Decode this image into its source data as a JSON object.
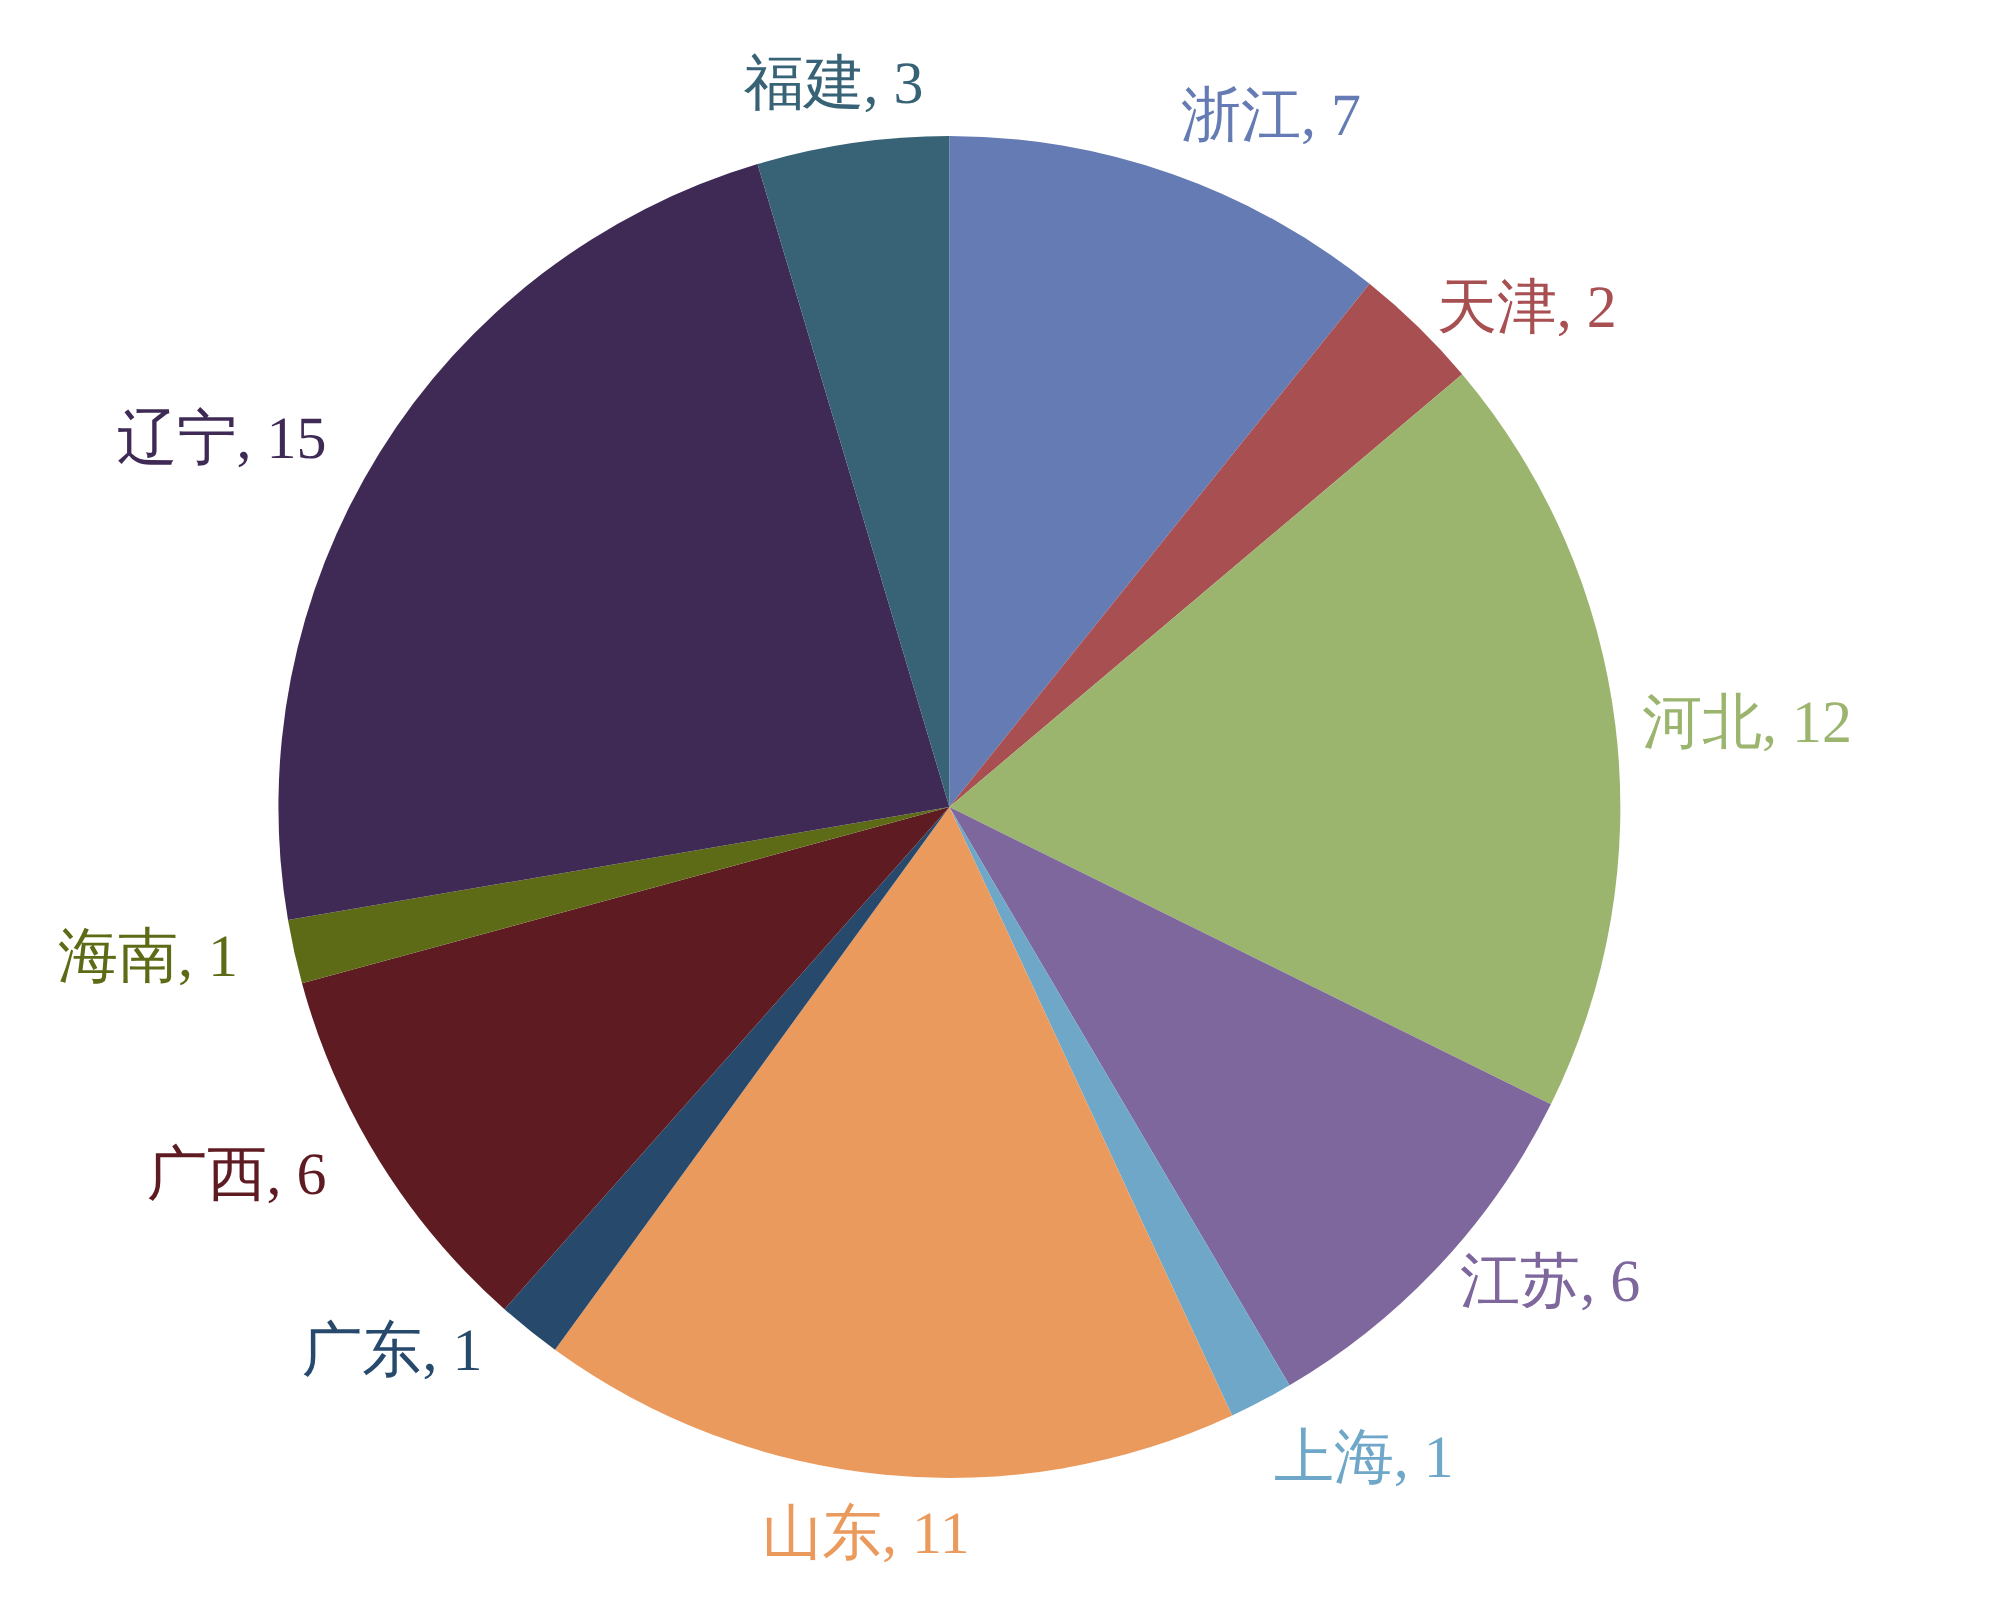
{
  "chart_data": {
    "type": "pie",
    "categories": [
      "浙江",
      "天津",
      "河北",
      "江苏",
      "上海",
      "山东",
      "广东",
      "广西",
      "海南",
      "辽宁",
      "福建"
    ],
    "values": [
      7,
      2,
      12,
      6,
      1,
      11,
      1,
      6,
      1,
      15,
      3
    ],
    "value_labels": [
      ", 7",
      ", 2",
      ", 12",
      ", 6",
      ", 1",
      ", 11",
      ", 1",
      ", 6",
      ", 1",
      ", 15",
      ", 3"
    ],
    "colors": [
      "#657bb4",
      "#a84f52",
      "#9bb56f",
      "#7d679c",
      "#6fa7c8",
      "#eb9a5e",
      "#26496c",
      "#5e1b22",
      "#5e6b16",
      "#3f2a55",
      "#386276"
    ]
  }
}
